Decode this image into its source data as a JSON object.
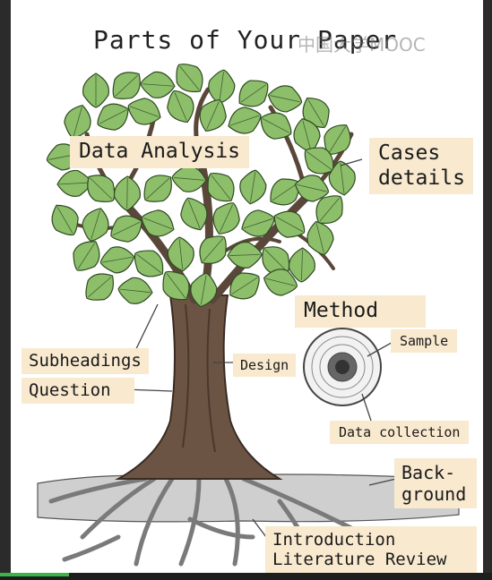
{
  "title": "Parts of Your Paper",
  "watermark": "中国大学MOOC",
  "labels": {
    "data_analysis": "Data Analysis",
    "cases_details": "Cases\ndetails",
    "method": "Method",
    "sample": "Sample",
    "design": "Design",
    "subheadings": "Subheadings",
    "question": "Question",
    "data_collection": "Data collection",
    "background": "Back-\nground",
    "introduction": "Introduction",
    "literature_review": "Literature Review"
  },
  "colors": {
    "label_bg": "#f8e9cf",
    "leaf": "#8dbf6a",
    "trunk": "#6b5444",
    "progress": "#3bb54a"
  },
  "video_progress": 0.14
}
